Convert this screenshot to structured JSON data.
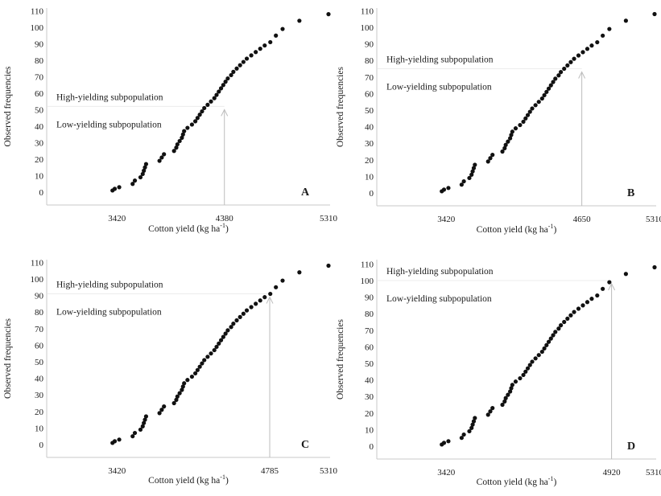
{
  "chart_data": [
    {
      "type": "scatter",
      "panel_label": "A",
      "threshold": 4380,
      "threshold_frequency": 52,
      "ylabel": "Observed frequencies",
      "xlabel_main": "Cotton yield (kg ha",
      "xlabel_sup": "-1",
      "xlabel_end": ")",
      "xticks": [
        "3420",
        "4380",
        "5310"
      ],
      "yticks": [
        "0",
        "10",
        "20",
        "30",
        "40",
        "50",
        "60",
        "70",
        "80",
        "90",
        "100",
        "110"
      ],
      "xlim": [
        2900,
        5310
      ],
      "ylim": [
        0,
        110
      ],
      "upper_label": "High-yielding subpopulation",
      "lower_label": "Low-yielding subpopulation",
      "series": [
        {
          "x": [
            3380,
            3400,
            3440,
            3560,
            3580,
            3630,
            3650,
            3660,
            3670,
            3680,
            3800,
            3820,
            3840,
            3930,
            3950,
            3960,
            3980,
            4000,
            4010,
            4020,
            4050,
            4090,
            4120,
            4140,
            4160,
            4180,
            4200,
            4230,
            4260,
            4290,
            4310,
            4330,
            4350,
            4370,
            4390,
            4410,
            4440,
            4460,
            4490,
            4520,
            4550,
            4580,
            4620,
            4660,
            4700,
            4740,
            4790,
            4840,
            4900,
            5050,
            5310
          ],
          "y": [
            1,
            2,
            3,
            5,
            7,
            9,
            11,
            13,
            15,
            17,
            19,
            21,
            23,
            25,
            27,
            29,
            31,
            33,
            35,
            37,
            39,
            41,
            43,
            45,
            47,
            49,
            51,
            53,
            55,
            57,
            59,
            61,
            63,
            65,
            67,
            69,
            71,
            73,
            75,
            77,
            79,
            81,
            83,
            85,
            87,
            89,
            91,
            95,
            99,
            104,
            108
          ]
        }
      ]
    },
    {
      "type": "scatter",
      "panel_label": "B",
      "threshold": 4650,
      "threshold_frequency": 75,
      "ylabel": "Observed frequencies",
      "xlabel_main": "Cotton yield (kg ha",
      "xlabel_sup": "-1",
      "xlabel_end": ")",
      "xticks": [
        "3420",
        "4650",
        "5310"
      ],
      "yticks": [
        "0",
        "10",
        "20",
        "30",
        "40",
        "50",
        "60",
        "70",
        "80",
        "90",
        "100",
        "110"
      ],
      "xlim": [
        2900,
        5310
      ],
      "ylim": [
        0,
        110
      ],
      "upper_label": "High-yielding subpopulation",
      "lower_label": "Low-yielding subpopulation",
      "series": [
        {
          "x": [
            3380,
            3400,
            3440,
            3560,
            3580,
            3630,
            3650,
            3660,
            3670,
            3680,
            3800,
            3820,
            3840,
            3930,
            3950,
            3960,
            3980,
            4000,
            4010,
            4020,
            4050,
            4090,
            4120,
            4140,
            4160,
            4180,
            4200,
            4230,
            4260,
            4290,
            4310,
            4330,
            4350,
            4370,
            4390,
            4410,
            4440,
            4460,
            4490,
            4520,
            4550,
            4580,
            4620,
            4660,
            4700,
            4740,
            4790,
            4840,
            4900,
            5050,
            5310
          ],
          "y": [
            1,
            2,
            3,
            5,
            7,
            9,
            11,
            13,
            15,
            17,
            19,
            21,
            23,
            25,
            27,
            29,
            31,
            33,
            35,
            37,
            39,
            41,
            43,
            45,
            47,
            49,
            51,
            53,
            55,
            57,
            59,
            61,
            63,
            65,
            67,
            69,
            71,
            73,
            75,
            77,
            79,
            81,
            83,
            85,
            87,
            89,
            91,
            95,
            99,
            104,
            108
          ]
        }
      ]
    },
    {
      "type": "scatter",
      "panel_label": "C",
      "threshold": 4785,
      "threshold_frequency": 91,
      "ylabel": "Observed frequencies",
      "xlabel_main": "Cotton yield (kg ha",
      "xlabel_sup": "-1",
      "xlabel_end": ")",
      "xticks": [
        "3420",
        "4785",
        "5310"
      ],
      "yticks": [
        "0",
        "10",
        "20",
        "30",
        "40",
        "50",
        "60",
        "70",
        "80",
        "90",
        "100",
        "110"
      ],
      "xlim": [
        2900,
        5310
      ],
      "ylim": [
        0,
        110
      ],
      "upper_label": "High-yielding subpopulation",
      "lower_label": "Low-yielding subpopulation",
      "series": [
        {
          "x": [
            3380,
            3400,
            3440,
            3560,
            3580,
            3630,
            3650,
            3660,
            3670,
            3680,
            3800,
            3820,
            3840,
            3930,
            3950,
            3960,
            3980,
            4000,
            4010,
            4020,
            4050,
            4090,
            4120,
            4140,
            4160,
            4180,
            4200,
            4230,
            4260,
            4290,
            4310,
            4330,
            4350,
            4370,
            4390,
            4410,
            4440,
            4460,
            4490,
            4520,
            4550,
            4580,
            4620,
            4660,
            4700,
            4740,
            4790,
            4840,
            4900,
            5050,
            5310
          ],
          "y": [
            1,
            2,
            3,
            5,
            7,
            9,
            11,
            13,
            15,
            17,
            19,
            21,
            23,
            25,
            27,
            29,
            31,
            33,
            35,
            37,
            39,
            41,
            43,
            45,
            47,
            49,
            51,
            53,
            55,
            57,
            59,
            61,
            63,
            65,
            67,
            69,
            71,
            73,
            75,
            77,
            79,
            81,
            83,
            85,
            87,
            89,
            91,
            95,
            99,
            104,
            108
          ]
        }
      ]
    },
    {
      "type": "scatter",
      "panel_label": "D",
      "threshold": 4920,
      "threshold_frequency": 100,
      "ylabel": "Observed frequencies",
      "xlabel_main": "Cotton yield (kg ha",
      "xlabel_sup": "-1",
      "xlabel_end": ")",
      "xticks": [
        "3420",
        "4920",
        "5310"
      ],
      "yticks": [
        "0",
        "10",
        "20",
        "30",
        "40",
        "50",
        "60",
        "70",
        "80",
        "90",
        "100",
        "110"
      ],
      "xlim": [
        2900,
        5310
      ],
      "ylim": [
        0,
        110
      ],
      "upper_label": "High-yielding subpopulation",
      "lower_label": "Low-yielding subpopulation",
      "series": [
        {
          "x": [
            3380,
            3400,
            3440,
            3560,
            3580,
            3630,
            3650,
            3660,
            3670,
            3680,
            3800,
            3820,
            3840,
            3930,
            3950,
            3960,
            3980,
            4000,
            4010,
            4020,
            4050,
            4090,
            4120,
            4140,
            4160,
            4180,
            4200,
            4230,
            4260,
            4290,
            4310,
            4330,
            4350,
            4370,
            4390,
            4410,
            4440,
            4460,
            4490,
            4520,
            4550,
            4580,
            4620,
            4660,
            4700,
            4740,
            4790,
            4840,
            4900,
            5050,
            5310
          ],
          "y": [
            1,
            2,
            3,
            5,
            7,
            9,
            11,
            13,
            15,
            17,
            19,
            21,
            23,
            25,
            27,
            29,
            31,
            33,
            35,
            37,
            39,
            41,
            43,
            45,
            47,
            49,
            51,
            53,
            55,
            57,
            59,
            61,
            63,
            65,
            67,
            69,
            71,
            73,
            75,
            77,
            79,
            81,
            83,
            85,
            87,
            89,
            91,
            95,
            99,
            104,
            108
          ]
        }
      ]
    }
  ]
}
